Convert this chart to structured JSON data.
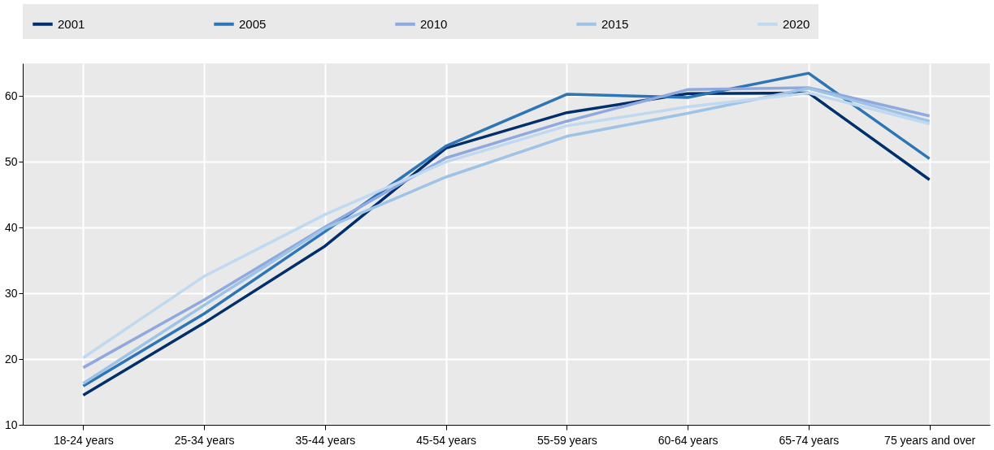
{
  "chart_data": {
    "type": "line",
    "categories": [
      "18-24 years",
      "25-34 years",
      "35-44 years",
      "45-54 years",
      "55-59 years",
      "60-64 years",
      "65-74 years",
      "75 years and over"
    ],
    "series": [
      {
        "name": "2001",
        "color": "#002f6c",
        "values": [
          14.5,
          25.5,
          37.2,
          52.1,
          57.5,
          60.4,
          60.5,
          47.3
        ]
      },
      {
        "name": "2005",
        "color": "#2e75b6",
        "values": [
          15.9,
          26.9,
          39.4,
          52.4,
          60.3,
          59.8,
          63.5,
          50.5
        ]
      },
      {
        "name": "2010",
        "color": "#8fa9e0",
        "values": [
          18.7,
          29.0,
          40.1,
          50.6,
          56.2,
          61.0,
          61.3,
          57.0
        ]
      },
      {
        "name": "2015",
        "color": "#9dc3e6",
        "values": [
          16.3,
          28.2,
          39.9,
          47.7,
          53.9,
          57.4,
          61.2,
          56.2
        ]
      },
      {
        "name": "2020",
        "color": "#c0d9f0",
        "values": [
          20.2,
          32.6,
          42.0,
          50.0,
          55.5,
          58.4,
          60.5,
          55.8
        ]
      }
    ],
    "ylim": [
      10,
      65
    ],
    "yticks": [
      10,
      20,
      30,
      40,
      50,
      60
    ],
    "grid": true,
    "legend": "top",
    "marker": "none",
    "line_style": "solid"
  }
}
